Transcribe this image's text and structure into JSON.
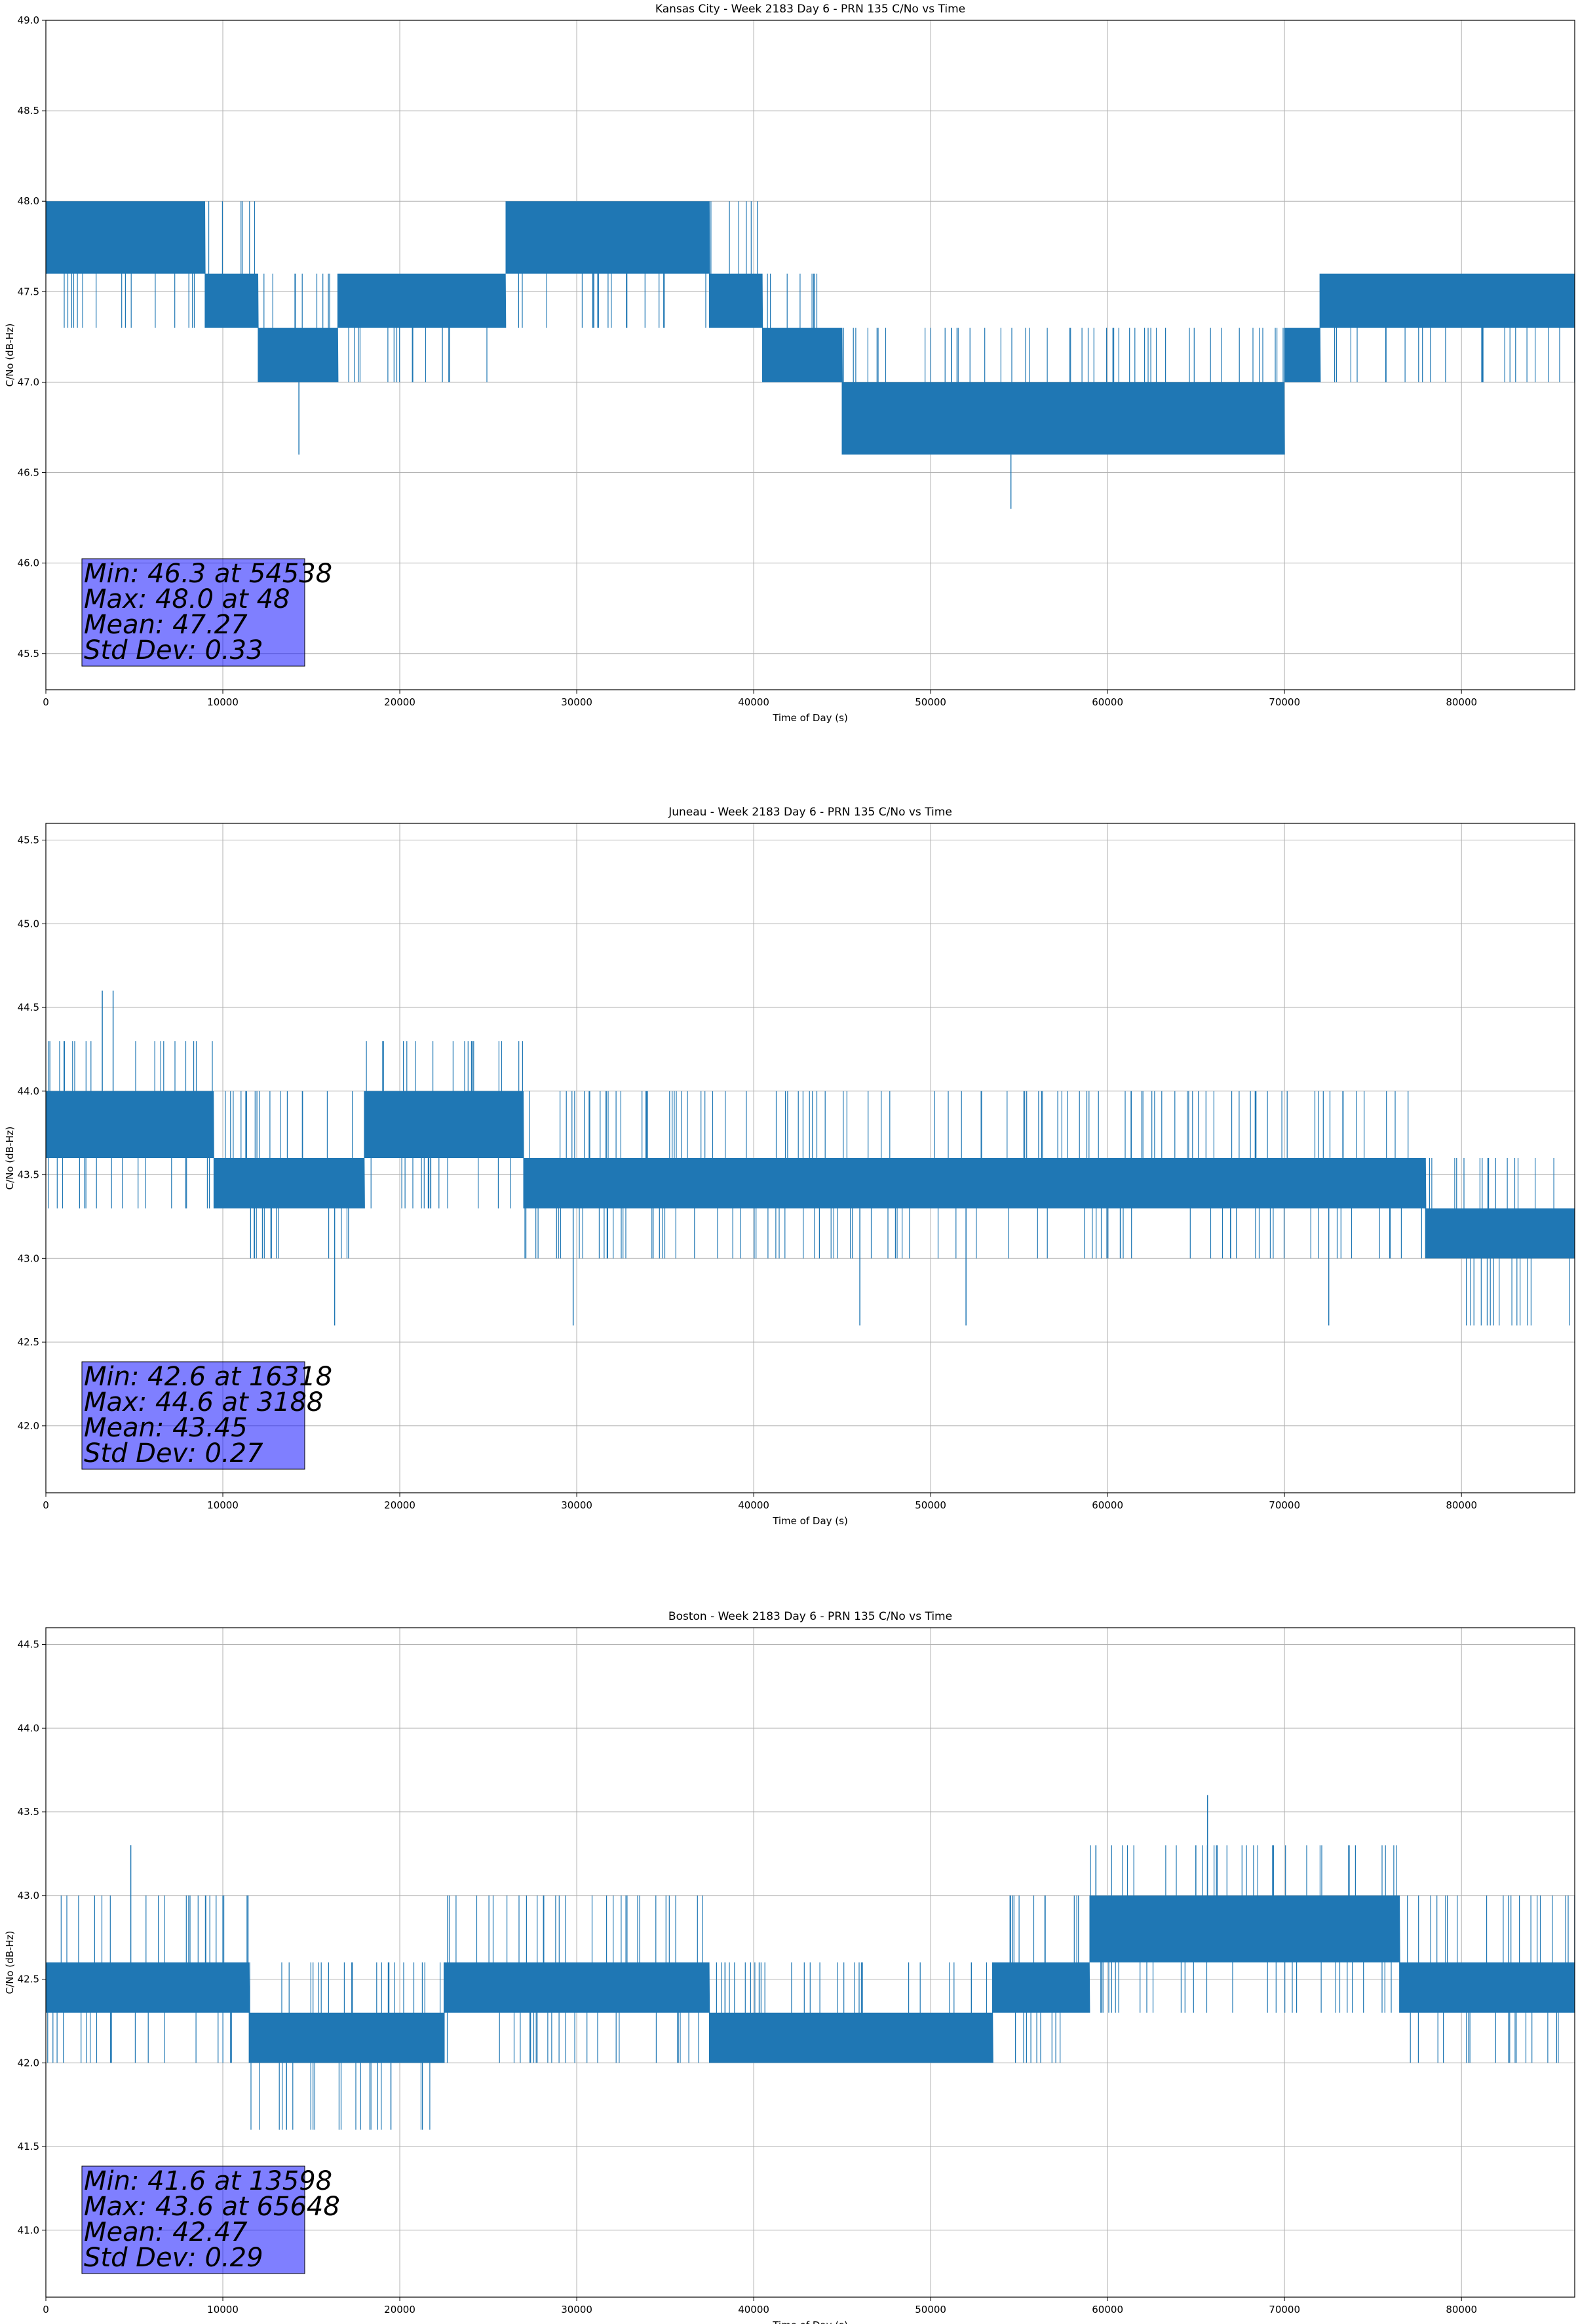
{
  "chart_data": [
    {
      "type": "line",
      "title": "Kansas City - Week 2183 Day 6 - PRN 135 C/No vs Time",
      "xlabel": "Time of Day (s)",
      "ylabel": "C/No (dB-Hz)",
      "xlim": [
        0,
        86400
      ],
      "ylim": [
        45.3,
        49.0
      ],
      "xticks": [
        0,
        10000,
        20000,
        30000,
        40000,
        50000,
        60000,
        70000,
        80000
      ],
      "yticks": [
        45.5,
        46.0,
        46.5,
        47.0,
        47.5,
        48.0,
        48.5,
        49.0
      ],
      "ytick_decimals": 1,
      "grid": true,
      "color": "#1f77b4",
      "quantization": 0.33,
      "bands": [
        {
          "x": 0,
          "lo": 47.6,
          "hi": 48.0,
          "upspikes": [],
          "downspikes": [
            47.3
          ]
        },
        {
          "x": 6000,
          "lo": 47.6,
          "hi": 48.0,
          "upspikes": [],
          "downspikes": [
            47.3
          ]
        },
        {
          "x": 9000,
          "lo": 47.3,
          "hi": 47.6,
          "upspikes": [
            48.0
          ],
          "downspikes": []
        },
        {
          "x": 12000,
          "lo": 47.0,
          "hi": 47.3,
          "upspikes": [
            47.6
          ],
          "downspikes": []
        },
        {
          "x": 16500,
          "lo": 47.3,
          "hi": 47.6,
          "upspikes": [],
          "downspikes": [
            47.0
          ]
        },
        {
          "x": 26000,
          "lo": 47.6,
          "hi": 48.0,
          "upspikes": [],
          "downspikes": [
            47.3
          ]
        },
        {
          "x": 31000,
          "lo": 47.6,
          "hi": 48.0,
          "upspikes": [],
          "downspikes": [
            47.3
          ]
        },
        {
          "x": 37500,
          "lo": 47.3,
          "hi": 47.6,
          "upspikes": [
            48.0
          ],
          "downspikes": []
        },
        {
          "x": 40500,
          "lo": 47.0,
          "hi": 47.3,
          "upspikes": [
            47.6
          ],
          "downspikes": []
        },
        {
          "x": 45000,
          "lo": 46.6,
          "hi": 47.0,
          "upspikes": [
            47.3
          ],
          "downspikes": []
        },
        {
          "x": 70000,
          "lo": 47.0,
          "hi": 47.3,
          "upspikes": [],
          "downspikes": []
        },
        {
          "x": 72000,
          "lo": 47.3,
          "hi": 47.6,
          "upspikes": [],
          "downspikes": [
            47.0
          ]
        },
        {
          "x": 86400,
          "lo": 47.3,
          "hi": 47.6,
          "upspikes": [],
          "downspikes": []
        }
      ],
      "extremes": [
        {
          "x": 48,
          "y": 48.0
        },
        {
          "x": 14300,
          "y": 46.6
        },
        {
          "x": 54538,
          "y": 46.3
        }
      ],
      "stats": {
        "min": "Min: 46.3 at 54538",
        "max": "Max: 48.0 at 48",
        "mean": "Mean: 47.27",
        "std": "Std Dev: 0.33"
      }
    },
    {
      "type": "line",
      "title": "Juneau - Week 2183 Day 6 - PRN 135 C/No vs Time",
      "xlabel": "Time of Day (s)",
      "ylabel": "C/No (dB-Hz)",
      "xlim": [
        0,
        86400
      ],
      "ylim": [
        41.6,
        45.6
      ],
      "xticks": [
        0,
        10000,
        20000,
        30000,
        40000,
        50000,
        60000,
        70000,
        80000
      ],
      "yticks": [
        42.0,
        42.5,
        43.0,
        43.5,
        44.0,
        44.5,
        45.0,
        45.5
      ],
      "ytick_decimals": 1,
      "grid": true,
      "color": "#1f77b4",
      "quantization": 0.33,
      "bands": [
        {
          "x": 0,
          "lo": 43.6,
          "hi": 44.0,
          "upspikes": [
            44.3
          ],
          "downspikes": [
            43.3
          ]
        },
        {
          "x": 9500,
          "lo": 43.3,
          "hi": 43.6,
          "upspikes": [
            44.0
          ],
          "downspikes": [
            43.0
          ]
        },
        {
          "x": 18000,
          "lo": 43.6,
          "hi": 44.0,
          "upspikes": [
            44.3
          ],
          "downspikes": [
            43.3
          ]
        },
        {
          "x": 27000,
          "lo": 43.3,
          "hi": 43.6,
          "upspikes": [
            44.0
          ],
          "downspikes": [
            43.0
          ]
        },
        {
          "x": 58500,
          "lo": 43.3,
          "hi": 43.6,
          "upspikes": [
            44.0
          ],
          "downspikes": [
            43.0
          ]
        },
        {
          "x": 78000,
          "lo": 43.0,
          "hi": 43.3,
          "upspikes": [
            43.6
          ],
          "downspikes": [
            42.6
          ]
        },
        {
          "x": 86400,
          "lo": 43.0,
          "hi": 43.3,
          "upspikes": [],
          "downspikes": []
        }
      ],
      "extremes": [
        {
          "x": 3188,
          "y": 44.6
        },
        {
          "x": 3800,
          "y": 44.6
        },
        {
          "x": 16318,
          "y": 42.6
        },
        {
          "x": 29800,
          "y": 42.6
        },
        {
          "x": 46000,
          "y": 42.6
        },
        {
          "x": 52000,
          "y": 42.6
        },
        {
          "x": 72500,
          "y": 42.6
        }
      ],
      "stats": {
        "min": "Min: 42.6 at 16318",
        "max": "Max: 44.6 at 3188",
        "mean": "Mean: 43.45",
        "std": "Std Dev: 0.27"
      }
    },
    {
      "type": "line",
      "title": "Boston - Week 2183 Day 6 - PRN 135 C/No vs Time",
      "xlabel": "Time of Day (s)",
      "ylabel": "C/No (dB-Hz)",
      "xlim": [
        0,
        86400
      ],
      "ylim": [
        40.6,
        44.6
      ],
      "xticks": [
        0,
        10000,
        20000,
        30000,
        40000,
        50000,
        60000,
        70000,
        80000
      ],
      "yticks": [
        41.0,
        41.5,
        42.0,
        42.5,
        43.0,
        43.5,
        44.0,
        44.5
      ],
      "ytick_decimals": 1,
      "grid": true,
      "color": "#1f77b4",
      "quantization": 0.33,
      "bands": [
        {
          "x": 0,
          "lo": 42.3,
          "hi": 42.6,
          "upspikes": [
            43.0
          ],
          "downspikes": [
            42.0
          ]
        },
        {
          "x": 11500,
          "lo": 42.0,
          "hi": 42.3,
          "upspikes": [
            42.6
          ],
          "downspikes": [
            41.6
          ]
        },
        {
          "x": 22500,
          "lo": 42.3,
          "hi": 42.6,
          "upspikes": [
            43.0
          ],
          "downspikes": [
            42.0
          ]
        },
        {
          "x": 37500,
          "lo": 42.0,
          "hi": 42.3,
          "upspikes": [
            42.6
          ],
          "downspikes": []
        },
        {
          "x": 53500,
          "lo": 42.3,
          "hi": 42.6,
          "upspikes": [
            43.0
          ],
          "downspikes": [
            42.0
          ]
        },
        {
          "x": 59000,
          "lo": 42.6,
          "hi": 43.0,
          "upspikes": [
            43.3
          ],
          "downspikes": [
            42.3
          ]
        },
        {
          "x": 74000,
          "lo": 42.6,
          "hi": 43.0,
          "upspikes": [
            43.3
          ],
          "downspikes": [
            42.3
          ]
        },
        {
          "x": 76500,
          "lo": 42.3,
          "hi": 42.6,
          "upspikes": [
            43.0
          ],
          "downspikes": [
            42.0
          ]
        },
        {
          "x": 86400,
          "lo": 42.3,
          "hi": 42.6,
          "upspikes": [],
          "downspikes": []
        }
      ],
      "extremes": [
        {
          "x": 65648,
          "y": 43.6
        },
        {
          "x": 13598,
          "y": 41.6
        },
        {
          "x": 4800,
          "y": 43.3
        },
        {
          "x": 19500,
          "y": 41.6
        }
      ],
      "stats": {
        "min": "Min: 41.6 at 13598",
        "max": "Max: 43.6 at 65648",
        "mean": "Mean: 42.47",
        "std": "Std Dev: 0.29"
      }
    }
  ]
}
